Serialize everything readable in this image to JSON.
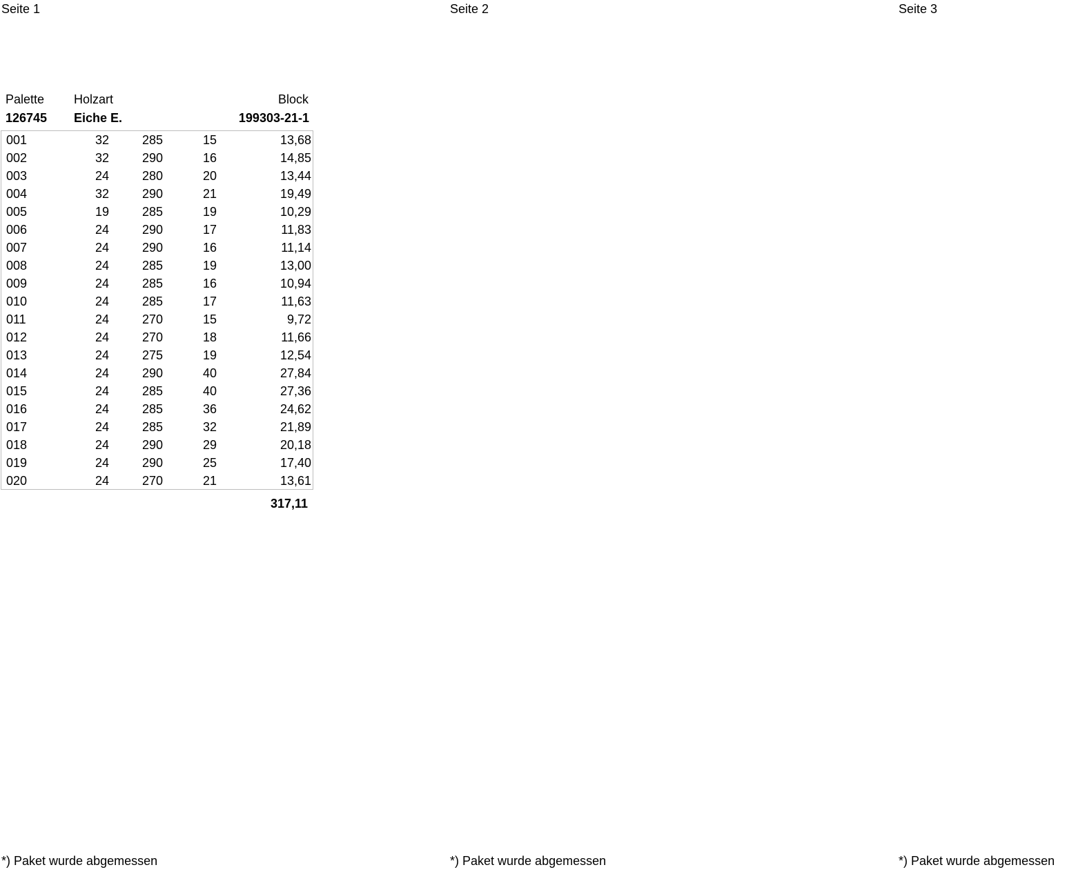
{
  "pages": [
    {
      "header": "Seite 1",
      "footer": "*) Paket wurde abgemessen"
    },
    {
      "header": "Seite 2",
      "footer": "*) Paket wurde abgemessen"
    },
    {
      "header": "Seite 3",
      "footer": "*) Paket wurde abgemessen"
    }
  ],
  "info": {
    "palette_label": "Palette",
    "palette_value": "126745",
    "holzart_label": "Holzart",
    "holzart_value": "Eiche E.",
    "block_label": "Block",
    "block_value": "199303-21-1"
  },
  "rows": [
    [
      "001",
      "32",
      "285",
      "15",
      "13,68"
    ],
    [
      "002",
      "32",
      "290",
      "16",
      "14,85"
    ],
    [
      "003",
      "24",
      "280",
      "20",
      "13,44"
    ],
    [
      "004",
      "32",
      "290",
      "21",
      "19,49"
    ],
    [
      "005",
      "19",
      "285",
      "19",
      "10,29"
    ],
    [
      "006",
      "24",
      "290",
      "17",
      "11,83"
    ],
    [
      "007",
      "24",
      "290",
      "16",
      "11,14"
    ],
    [
      "008",
      "24",
      "285",
      "19",
      "13,00"
    ],
    [
      "009",
      "24",
      "285",
      "16",
      "10,94"
    ],
    [
      "010",
      "24",
      "285",
      "17",
      "11,63"
    ],
    [
      "011",
      "24",
      "270",
      "15",
      "9,72"
    ],
    [
      "012",
      "24",
      "270",
      "18",
      "11,66"
    ],
    [
      "013",
      "24",
      "275",
      "19",
      "12,54"
    ],
    [
      "014",
      "24",
      "290",
      "40",
      "27,84"
    ],
    [
      "015",
      "24",
      "285",
      "40",
      "27,36"
    ],
    [
      "016",
      "24",
      "285",
      "36",
      "24,62"
    ],
    [
      "017",
      "24",
      "285",
      "32",
      "21,89"
    ],
    [
      "018",
      "24",
      "290",
      "29",
      "20,18"
    ],
    [
      "019",
      "24",
      "290",
      "25",
      "17,40"
    ],
    [
      "020",
      "24",
      "270",
      "21",
      "13,61"
    ]
  ],
  "total": "317,11"
}
